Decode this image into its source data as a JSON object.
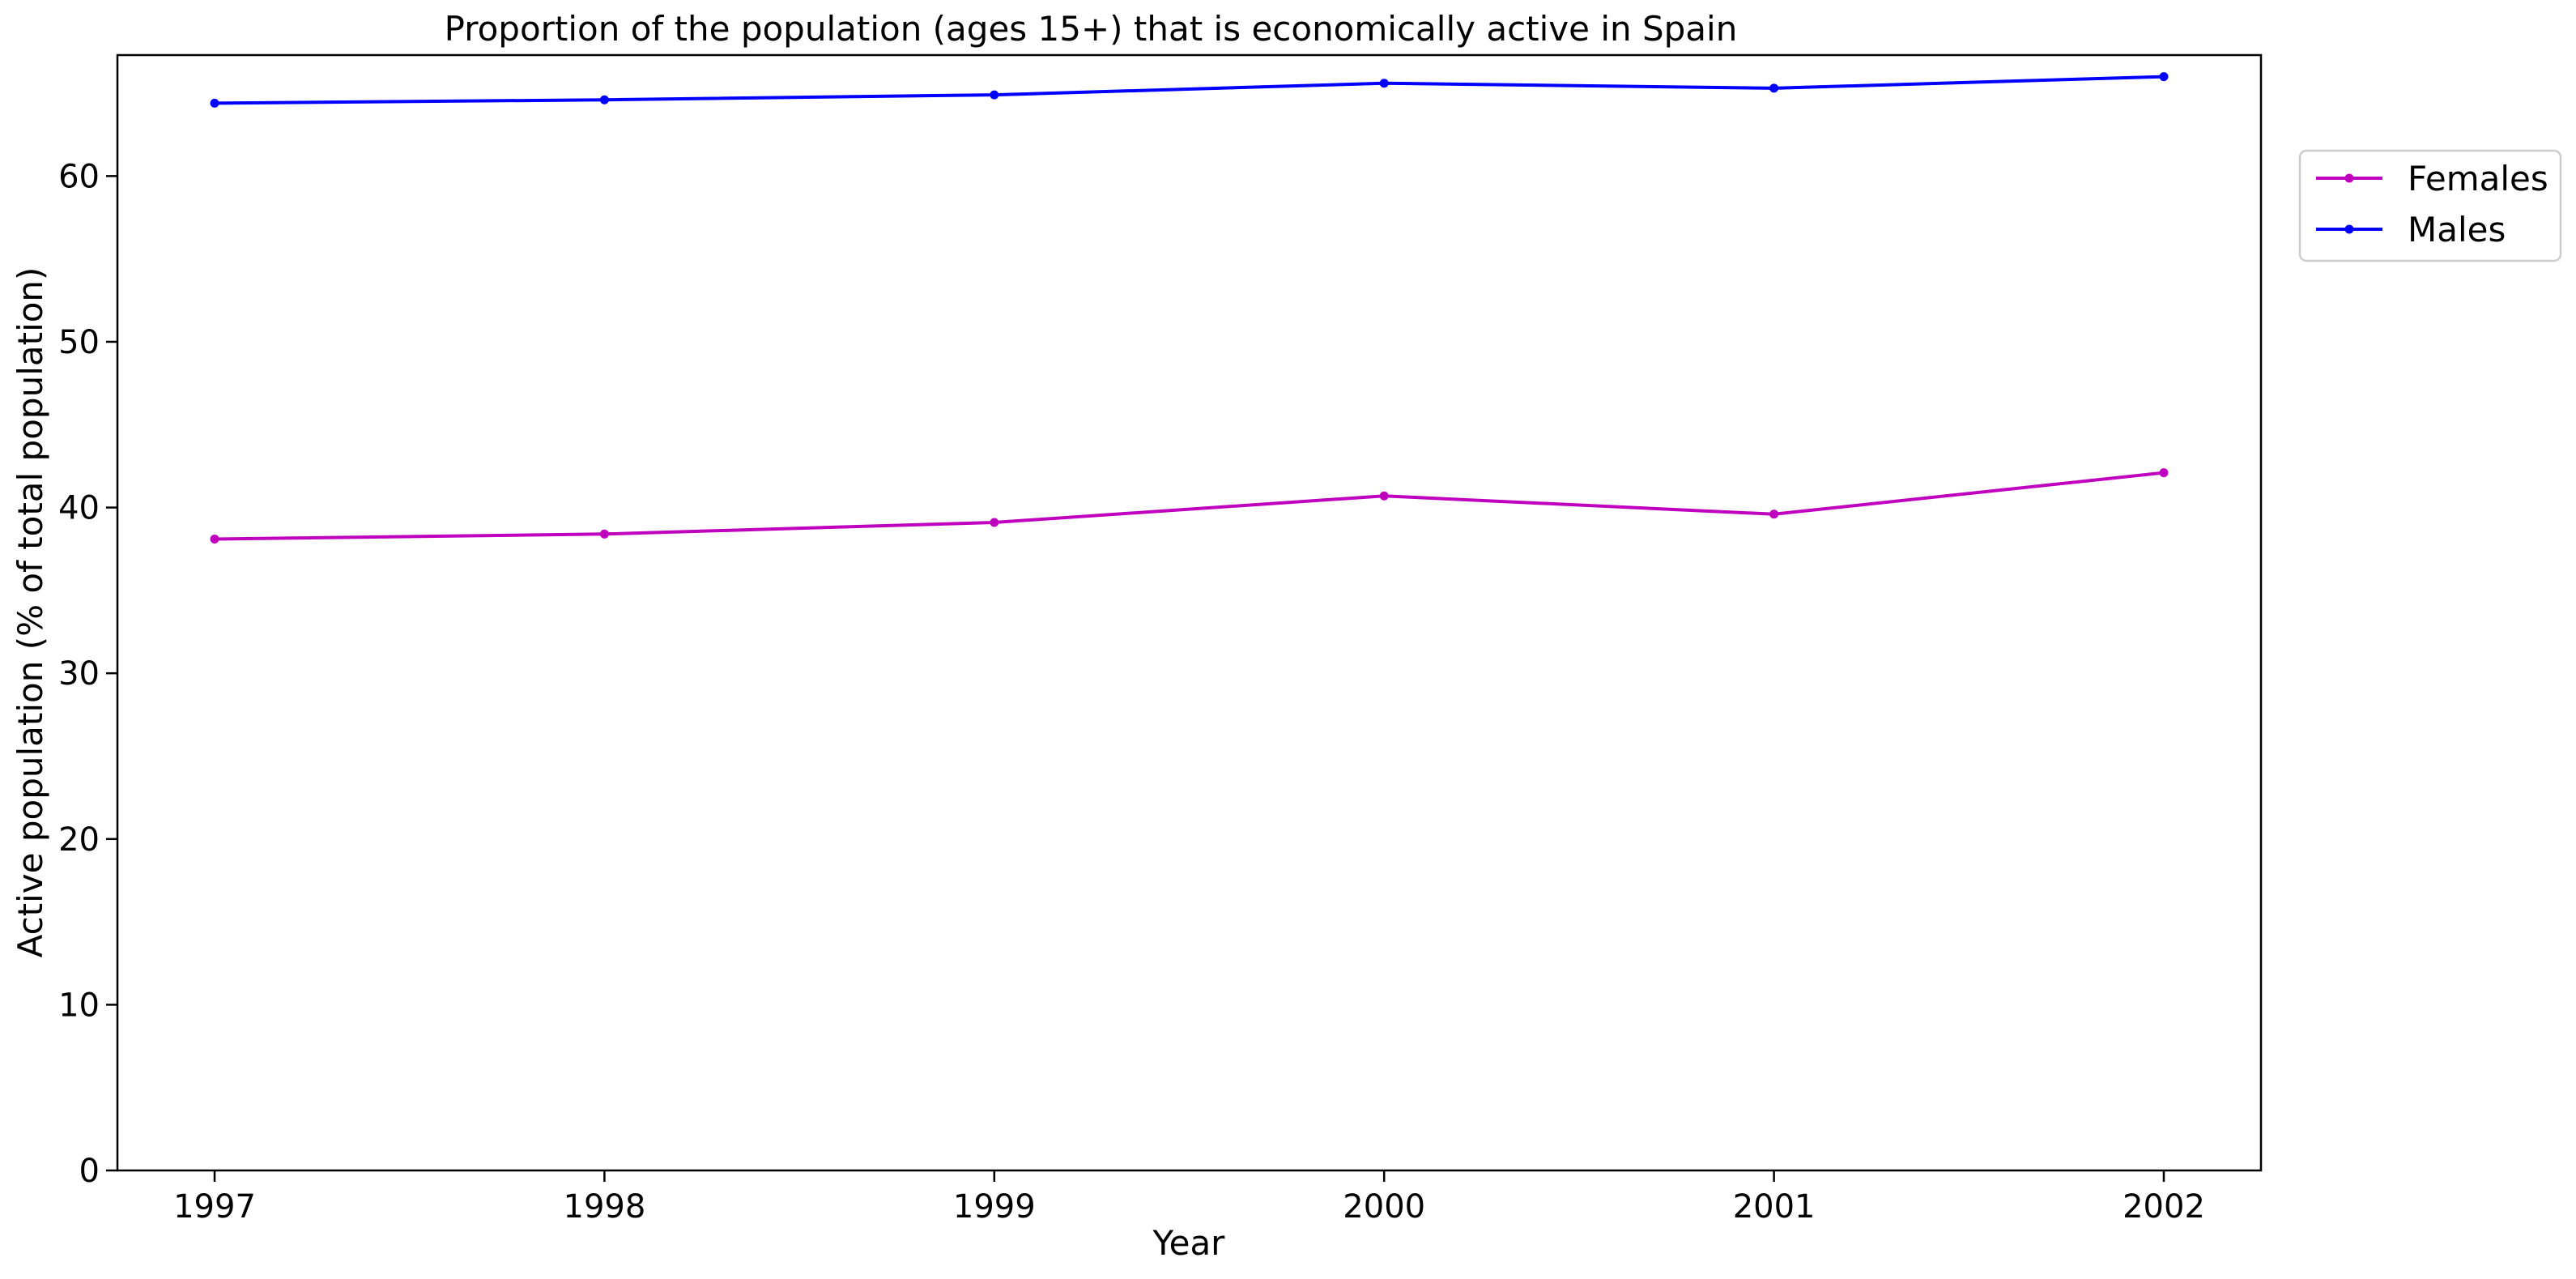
{
  "chart_data": {
    "type": "line",
    "title": "Proportion of the population (ages 15+) that is economically active in Spain",
    "xlabel": "Year",
    "ylabel": "Active population (% of total population)",
    "x": [
      "1997",
      "1998",
      "1999",
      "2000",
      "2001",
      "2002"
    ],
    "ylim": [
      0,
      67.3
    ],
    "yticks": [
      "0",
      "10",
      "20",
      "30",
      "40",
      "50",
      "60"
    ],
    "grid": false,
    "legend_position": "outside-right-top",
    "series": [
      {
        "name": "Females",
        "color": "#bf00bf",
        "values": [
          38.1,
          38.4,
          39.1,
          40.7,
          39.6,
          42.1
        ]
      },
      {
        "name": "Males",
        "color": "#0000ff",
        "values": [
          64.4,
          64.6,
          64.9,
          65.6,
          65.3,
          66.0
        ]
      }
    ]
  }
}
